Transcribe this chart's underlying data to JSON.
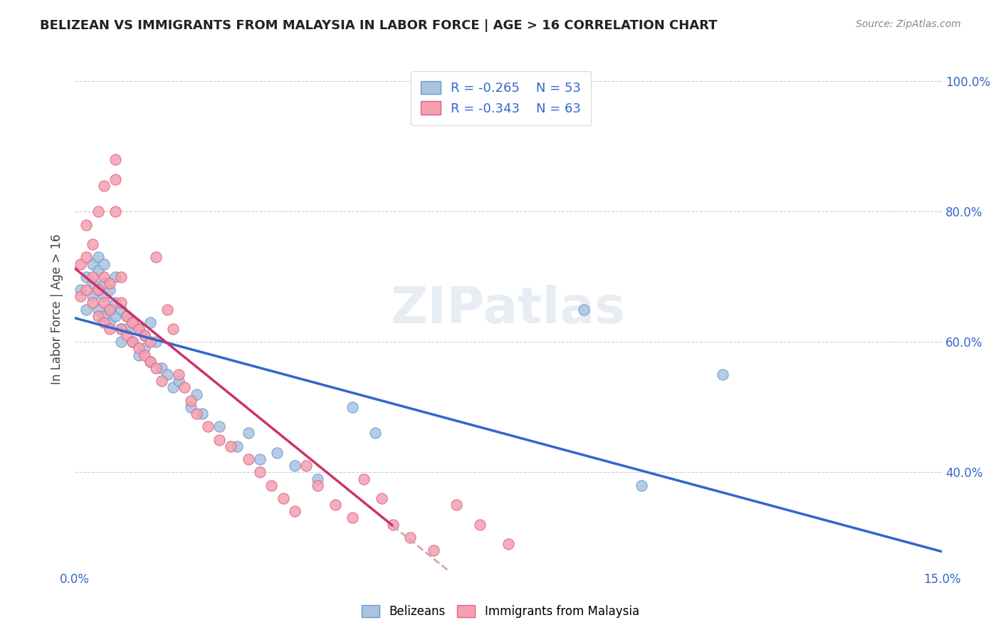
{
  "title": "BELIZEAN VS IMMIGRANTS FROM MALAYSIA IN LABOR FORCE | AGE > 16 CORRELATION CHART",
  "source_text": "Source: ZipAtlas.com",
  "ylabel": "In Labor Force | Age > 16",
  "xlim": [
    0.0,
    0.15
  ],
  "ylim": [
    0.25,
    1.05
  ],
  "yticks": [
    0.4,
    0.6,
    0.8,
    1.0
  ],
  "yticklabels": [
    "40.0%",
    "60.0%",
    "80.0%",
    "100.0%"
  ],
  "belizeans_color": "#a8c4e0",
  "malaysia_color": "#f4a0b0",
  "belizeans_edge": "#6699cc",
  "malaysia_edge": "#e06080",
  "trendline_belizeans": "#3366cc",
  "trendline_malaysia_solid": "#cc3366",
  "trendline_malaysia_dashed": "#ccaabb",
  "legend_label_1": "R = -0.265    N = 53",
  "legend_label_2": "R = -0.343    N = 63",
  "watermark": "ZIPatlas",
  "belizeans_x": [
    0.001,
    0.002,
    0.002,
    0.003,
    0.003,
    0.003,
    0.004,
    0.004,
    0.004,
    0.004,
    0.005,
    0.005,
    0.005,
    0.005,
    0.006,
    0.006,
    0.006,
    0.007,
    0.007,
    0.007,
    0.008,
    0.008,
    0.008,
    0.009,
    0.009,
    0.01,
    0.01,
    0.011,
    0.011,
    0.012,
    0.012,
    0.013,
    0.013,
    0.014,
    0.015,
    0.016,
    0.017,
    0.018,
    0.02,
    0.021,
    0.022,
    0.025,
    0.028,
    0.03,
    0.032,
    0.035,
    0.038,
    0.042,
    0.048,
    0.052,
    0.088,
    0.098,
    0.112
  ],
  "belizeans_y": [
    0.68,
    0.65,
    0.7,
    0.67,
    0.69,
    0.72,
    0.65,
    0.68,
    0.71,
    0.73,
    0.64,
    0.67,
    0.69,
    0.72,
    0.63,
    0.65,
    0.68,
    0.64,
    0.66,
    0.7,
    0.6,
    0.62,
    0.65,
    0.62,
    0.64,
    0.6,
    0.63,
    0.58,
    0.62,
    0.59,
    0.61,
    0.57,
    0.63,
    0.6,
    0.56,
    0.55,
    0.53,
    0.54,
    0.5,
    0.52,
    0.49,
    0.47,
    0.44,
    0.46,
    0.42,
    0.43,
    0.41,
    0.39,
    0.5,
    0.46,
    0.65,
    0.38,
    0.55
  ],
  "malaysia_x": [
    0.001,
    0.001,
    0.002,
    0.002,
    0.002,
    0.003,
    0.003,
    0.003,
    0.004,
    0.004,
    0.004,
    0.005,
    0.005,
    0.005,
    0.005,
    0.006,
    0.006,
    0.006,
    0.007,
    0.007,
    0.007,
    0.008,
    0.008,
    0.008,
    0.009,
    0.009,
    0.01,
    0.01,
    0.011,
    0.011,
    0.012,
    0.012,
    0.013,
    0.013,
    0.014,
    0.014,
    0.015,
    0.016,
    0.017,
    0.018,
    0.019,
    0.02,
    0.021,
    0.023,
    0.025,
    0.027,
    0.03,
    0.032,
    0.034,
    0.036,
    0.038,
    0.04,
    0.042,
    0.045,
    0.048,
    0.05,
    0.053,
    0.055,
    0.058,
    0.062,
    0.066,
    0.07,
    0.075
  ],
  "malaysia_y": [
    0.67,
    0.72,
    0.68,
    0.73,
    0.78,
    0.66,
    0.7,
    0.75,
    0.64,
    0.68,
    0.8,
    0.63,
    0.66,
    0.7,
    0.84,
    0.62,
    0.65,
    0.69,
    0.88,
    0.85,
    0.8,
    0.62,
    0.66,
    0.7,
    0.61,
    0.64,
    0.6,
    0.63,
    0.59,
    0.62,
    0.58,
    0.61,
    0.57,
    0.6,
    0.56,
    0.73,
    0.54,
    0.65,
    0.62,
    0.55,
    0.53,
    0.51,
    0.49,
    0.47,
    0.45,
    0.44,
    0.42,
    0.4,
    0.38,
    0.36,
    0.34,
    0.41,
    0.38,
    0.35,
    0.33,
    0.39,
    0.36,
    0.32,
    0.3,
    0.28,
    0.35,
    0.32,
    0.29
  ]
}
